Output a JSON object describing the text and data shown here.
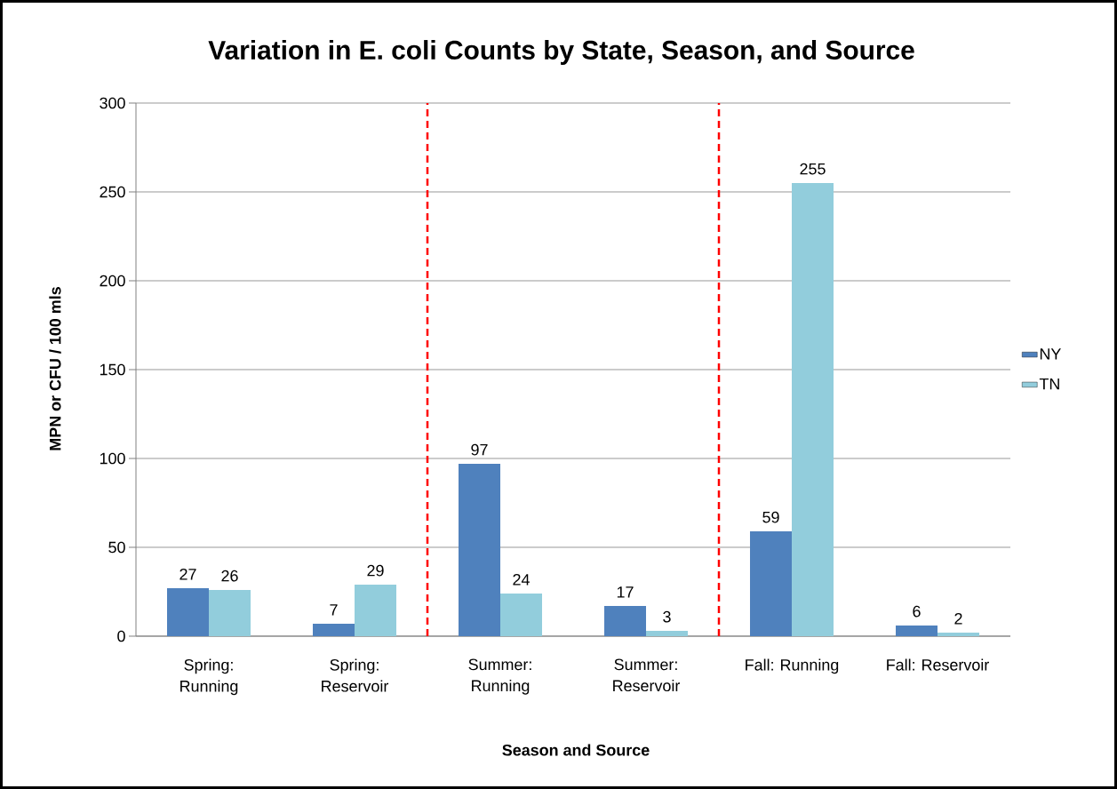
{
  "chart_data": {
    "type": "bar",
    "title": "Variation in E. coli Counts by State, Season, and Source",
    "xlabel": "Season and Source",
    "ylabel": "MPN or CFU / 100 mls",
    "categories": [
      "Spring: Running",
      "Spring: Reservoir",
      "Summer: Running",
      "Summer: Reservoir",
      "Fall: Running",
      "Fall: Reservoir"
    ],
    "series": [
      {
        "name": "NY",
        "color": "#4f81bd",
        "values": [
          27,
          7,
          97,
          17,
          59,
          6
        ]
      },
      {
        "name": "TN",
        "color": "#92cddc",
        "values": [
          26,
          29,
          24,
          3,
          255,
          2
        ]
      }
    ],
    "ylim": [
      0,
      300
    ],
    "yticks": [
      0,
      50,
      100,
      150,
      200,
      250,
      300
    ],
    "grid": "y",
    "legend": "right",
    "data_labels": true
  }
}
